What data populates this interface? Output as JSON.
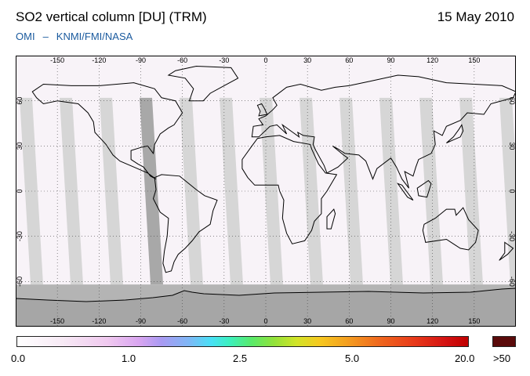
{
  "header": {
    "title": "SO2 vertical column [DU] (TRM)",
    "date": "15 May 2010",
    "credit_left": "OMI",
    "credit_dash": "–",
    "credit_right": "KNMI/FMI/NASA"
  },
  "map": {
    "projection": "equirectangular",
    "lon_ticks": [
      "-150",
      "-120",
      "-90",
      "-60",
      "-30",
      "0",
      "30",
      "60",
      "90",
      "120",
      "150"
    ],
    "lat_ticks": [
      "60",
      "30",
      "0",
      "-30",
      "-60"
    ],
    "colors": {
      "ocean": "#f8f3f8",
      "swath_gap_light": "#d6d6d6",
      "swath_gap_dark": "#a8a8a8",
      "polar_no_data": "#b4b4b4",
      "coastline": "#000000",
      "grid": "#444444"
    }
  },
  "colorbar": {
    "labels": [
      "0.0",
      "1.0",
      "2.5",
      "5.0",
      "20.0",
      ">50"
    ],
    "max_color": "#5a0a0a"
  }
}
